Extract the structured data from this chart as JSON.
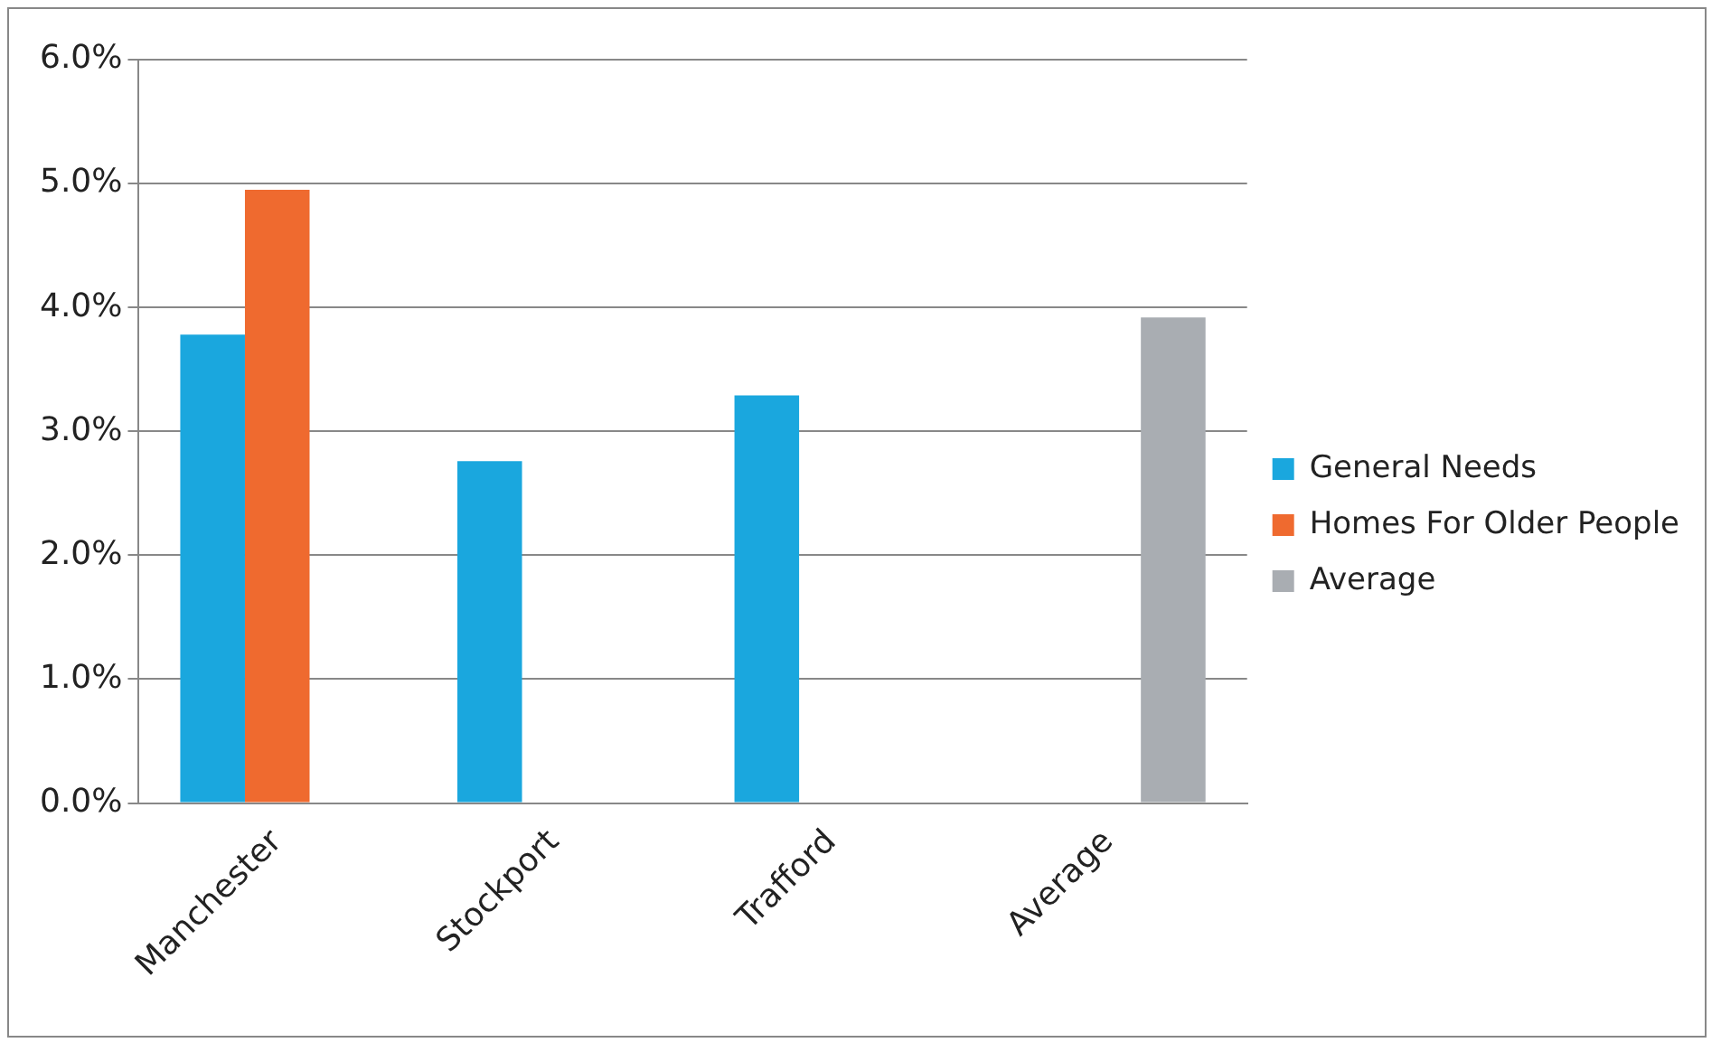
{
  "chart_data": {
    "type": "bar",
    "categories": [
      "Manchester",
      "Stockport",
      "Trafford",
      "Average"
    ],
    "series": [
      {
        "name": "General Needs",
        "color": "#1aa7de",
        "values": [
          3.78,
          2.76,
          3.29,
          null
        ]
      },
      {
        "name": "Homes For Older People",
        "color": "#ef6a2f",
        "values": [
          4.95,
          null,
          null,
          null
        ]
      },
      {
        "name": "Average",
        "color": "#a9adb2",
        "values": [
          null,
          null,
          null,
          3.92
        ]
      }
    ],
    "ylim": [
      0,
      6
    ],
    "yticks": [
      {
        "value": 0,
        "label": "0.0%"
      },
      {
        "value": 1,
        "label": "1.0%"
      },
      {
        "value": 2,
        "label": "2.0%"
      },
      {
        "value": 3,
        "label": "3.0%"
      },
      {
        "value": 4,
        "label": "4.0%"
      },
      {
        "value": 5,
        "label": "5.0%"
      },
      {
        "value": 6,
        "label": "6.0%"
      }
    ],
    "grid": "y",
    "legend": "right"
  }
}
